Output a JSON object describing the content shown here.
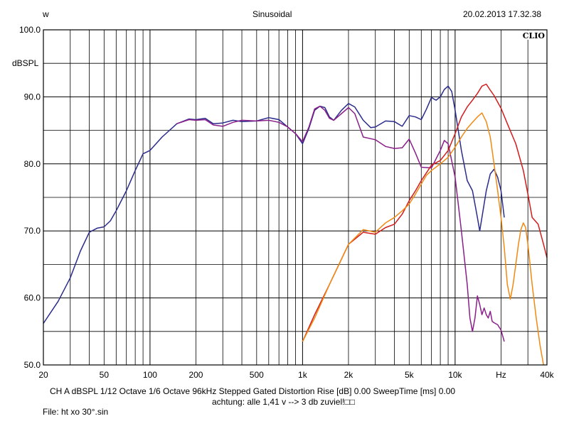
{
  "header": {
    "left": "w",
    "center": "Sinusoidal",
    "right": "20.02.2013 17.32.38",
    "brand": "CLIO"
  },
  "footer": {
    "line1": "CH A   dBSPL   1/12 Octave   1/6 Octave   96kHz   Stepped    Gated   Distortion Rise [dB] 0.00     SweepTime [ms] 0.00",
    "line2": "achtung: alle 1,41 v --> 3 db zuviel!□□",
    "file": "File: ht xo 30°.sin"
  },
  "colors": {
    "blue": "#2b2b8c",
    "purple": "#8a1f8a",
    "red": "#d21c1c",
    "orange": "#f08a12"
  },
  "chart_data": {
    "type": "line",
    "title": "Sinusoidal",
    "xlabel": "Hz",
    "ylabel": "dBSPL",
    "xscale": "log",
    "xlim": [
      20,
      40000
    ],
    "ylim": [
      50,
      100
    ],
    "grid": true,
    "x_tick_labels": [
      {
        "v": 20,
        "t": "20"
      },
      {
        "v": 50,
        "t": "50"
      },
      {
        "v": 100,
        "t": "100"
      },
      {
        "v": 200,
        "t": "200"
      },
      {
        "v": 500,
        "t": "500"
      },
      {
        "v": 1000,
        "t": "1k"
      },
      {
        "v": 2000,
        "t": "2k"
      },
      {
        "v": 5000,
        "t": "5k"
      },
      {
        "v": 10000,
        "t": "10k"
      },
      {
        "v": 20000,
        "t": "Hz"
      },
      {
        "v": 40000,
        "t": "40k"
      }
    ],
    "y_tick_labels": [
      {
        "v": 100,
        "t": "100.0"
      },
      {
        "v": 90,
        "t": "90.0"
      },
      {
        "v": 80,
        "t": "80.0"
      },
      {
        "v": 70,
        "t": "70.0"
      },
      {
        "v": 60,
        "t": "60.0"
      },
      {
        "v": 50,
        "t": "50.0"
      }
    ],
    "series": [
      {
        "color": "#2b2b8c",
        "points": [
          [
            20,
            56.2
          ],
          [
            25,
            59.5
          ],
          [
            30,
            63
          ],
          [
            35,
            67
          ],
          [
            40,
            69.8
          ],
          [
            45,
            70.4
          ],
          [
            50,
            70.6
          ],
          [
            55,
            71.5
          ],
          [
            60,
            73
          ],
          [
            70,
            76
          ],
          [
            80,
            79
          ],
          [
            90,
            81.5
          ],
          [
            100,
            82
          ],
          [
            120,
            84
          ],
          [
            150,
            86
          ],
          [
            180,
            86.7
          ],
          [
            200,
            86.6
          ],
          [
            230,
            86.8
          ],
          [
            260,
            86
          ],
          [
            300,
            86.1
          ],
          [
            350,
            86.5
          ],
          [
            400,
            86.3
          ],
          [
            500,
            86.4
          ],
          [
            600,
            86.9
          ],
          [
            700,
            86.6
          ],
          [
            800,
            85.5
          ],
          [
            900,
            84.5
          ],
          [
            1000,
            83
          ],
          [
            1100,
            85.3
          ],
          [
            1200,
            88
          ],
          [
            1300,
            88.6
          ],
          [
            1400,
            88.4
          ],
          [
            1500,
            87
          ],
          [
            1600,
            86.5
          ],
          [
            1800,
            88
          ],
          [
            2000,
            89
          ],
          [
            2200,
            88.5
          ],
          [
            2500,
            86.5
          ],
          [
            2800,
            85.4
          ],
          [
            3000,
            85.5
          ],
          [
            3500,
            86.4
          ],
          [
            4000,
            86.3
          ],
          [
            4500,
            85.6
          ],
          [
            5000,
            87.2
          ],
          [
            5500,
            87
          ],
          [
            6000,
            86.6
          ],
          [
            6500,
            88.2
          ],
          [
            7000,
            89.9
          ],
          [
            7500,
            89.5
          ],
          [
            8000,
            90
          ],
          [
            8500,
            91.1
          ],
          [
            9000,
            91.6
          ],
          [
            9500,
            90.8
          ],
          [
            10000,
            88
          ],
          [
            11000,
            82
          ],
          [
            12000,
            77.5
          ],
          [
            13000,
            76
          ],
          [
            14000,
            72
          ],
          [
            14500,
            70
          ],
          [
            15000,
            72
          ],
          [
            16000,
            76
          ],
          [
            17000,
            78.5
          ],
          [
            18000,
            79.2
          ],
          [
            19000,
            78
          ],
          [
            20000,
            76
          ],
          [
            21000,
            72
          ]
        ]
      },
      {
        "color": "#8a1f8a",
        "points": [
          [
            150,
            86
          ],
          [
            180,
            86.6
          ],
          [
            200,
            86.5
          ],
          [
            230,
            86.6
          ],
          [
            260,
            85.8
          ],
          [
            300,
            85.6
          ],
          [
            350,
            86.2
          ],
          [
            400,
            86.5
          ],
          [
            500,
            86.4
          ],
          [
            600,
            86.5
          ],
          [
            700,
            86.2
          ],
          [
            800,
            85.5
          ],
          [
            900,
            84.5
          ],
          [
            1000,
            83.3
          ],
          [
            1100,
            85.5
          ],
          [
            1200,
            88.2
          ],
          [
            1300,
            88.6
          ],
          [
            1400,
            88
          ],
          [
            1500,
            86.8
          ],
          [
            1600,
            86.5
          ],
          [
            1800,
            87.5
          ],
          [
            2000,
            88.4
          ],
          [
            2200,
            87.5
          ],
          [
            2500,
            84
          ],
          [
            3000,
            83.6
          ],
          [
            3500,
            82.6
          ],
          [
            4000,
            82.3
          ],
          [
            4500,
            82.4
          ],
          [
            5000,
            83.7
          ],
          [
            5500,
            81.6
          ],
          [
            6000,
            79.5
          ],
          [
            7000,
            79.4
          ],
          [
            8000,
            82
          ],
          [
            8500,
            83.5
          ],
          [
            9000,
            83
          ],
          [
            10000,
            78
          ],
          [
            11000,
            70
          ],
          [
            12000,
            62
          ],
          [
            12500,
            57
          ],
          [
            13000,
            55
          ],
          [
            13500,
            57
          ],
          [
            14000,
            60.3
          ],
          [
            14500,
            59
          ],
          [
            15000,
            57.5
          ],
          [
            15500,
            58.5
          ],
          [
            16000,
            57.5
          ],
          [
            16500,
            57
          ],
          [
            17000,
            58
          ],
          [
            17500,
            56.5
          ],
          [
            18000,
            56.3
          ],
          [
            19000,
            56
          ],
          [
            20000,
            55.2
          ],
          [
            21000,
            53.5
          ]
        ]
      },
      {
        "color": "#d21c1c",
        "points": [
          [
            1000,
            53.5
          ],
          [
            1200,
            57.5
          ],
          [
            1500,
            62
          ],
          [
            2000,
            68
          ],
          [
            2500,
            69.8
          ],
          [
            3000,
            69.5
          ],
          [
            3500,
            70.5
          ],
          [
            4000,
            71
          ],
          [
            4500,
            72.5
          ],
          [
            5000,
            74.5
          ],
          [
            5500,
            76
          ],
          [
            6000,
            77.5
          ],
          [
            7000,
            79.8
          ],
          [
            8000,
            80.5
          ],
          [
            9000,
            82
          ],
          [
            10000,
            84.5
          ],
          [
            11000,
            87
          ],
          [
            12000,
            88.5
          ],
          [
            13000,
            89.5
          ],
          [
            14000,
            90.5
          ],
          [
            15000,
            91.6
          ],
          [
            16000,
            91.9
          ],
          [
            17000,
            91
          ],
          [
            18000,
            90.2
          ],
          [
            20000,
            88.3
          ],
          [
            22000,
            86
          ],
          [
            25000,
            83
          ],
          [
            28000,
            79
          ],
          [
            30000,
            75.5
          ],
          [
            32000,
            72
          ],
          [
            35000,
            71
          ],
          [
            38000,
            68
          ],
          [
            40000,
            66
          ]
        ]
      },
      {
        "color": "#f08a12",
        "points": [
          [
            1000,
            53.5
          ],
          [
            1200,
            57
          ],
          [
            1500,
            62
          ],
          [
            2000,
            68
          ],
          [
            2500,
            70.2
          ],
          [
            3000,
            69.8
          ],
          [
            3500,
            71.2
          ],
          [
            4000,
            72
          ],
          [
            4500,
            73
          ],
          [
            5000,
            74
          ],
          [
            5500,
            75.5
          ],
          [
            6000,
            77
          ],
          [
            6500,
            78.3
          ],
          [
            7000,
            79
          ],
          [
            8000,
            80
          ],
          [
            9000,
            81
          ],
          [
            10000,
            82.5
          ],
          [
            11000,
            84
          ],
          [
            12000,
            85.3
          ],
          [
            13000,
            86.2
          ],
          [
            14000,
            87
          ],
          [
            15000,
            87.6
          ],
          [
            16000,
            86.3
          ],
          [
            17000,
            84
          ],
          [
            18000,
            80
          ],
          [
            19000,
            76
          ],
          [
            20000,
            72
          ],
          [
            21000,
            67.5
          ],
          [
            22000,
            62
          ],
          [
            23000,
            59.8
          ],
          [
            24000,
            62
          ],
          [
            25000,
            65
          ],
          [
            26000,
            68
          ],
          [
            27000,
            70.2
          ],
          [
            28000,
            71.2
          ],
          [
            29000,
            70.5
          ],
          [
            30000,
            68
          ],
          [
            32000,
            62
          ],
          [
            34000,
            57
          ],
          [
            36000,
            53
          ],
          [
            38000,
            50
          ]
        ]
      }
    ]
  }
}
